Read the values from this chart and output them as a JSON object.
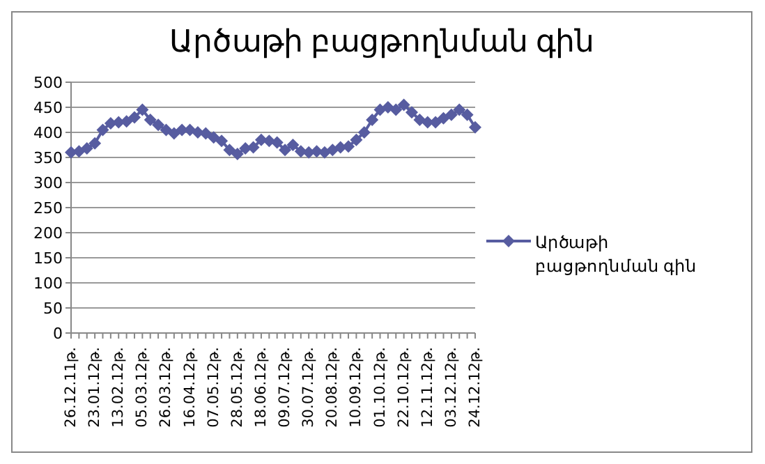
{
  "chart_data": {
    "type": "line",
    "title": "Արծաթի բացթողնման գին",
    "categories": [
      "26.12.11թ.",
      null,
      null,
      "23.01.12թ.",
      null,
      null,
      "13.02.12թ.",
      null,
      null,
      "05.03.12թ.",
      null,
      null,
      "26.03.12թ.",
      null,
      null,
      "16.04.12թ.",
      null,
      null,
      "07.05.12թ.",
      null,
      null,
      "28.05.12թ.",
      null,
      null,
      "18.06.12թ.",
      null,
      null,
      "09.07.12թ.",
      null,
      null,
      "30.07.12թ.",
      null,
      null,
      "20.08.12թ.",
      null,
      null,
      "10.09.12թ.",
      null,
      null,
      "01.10.12թ.",
      null,
      null,
      "22.10.12թ.",
      null,
      null,
      "12.11.12թ.",
      null,
      null,
      "03.12.12թ.",
      null,
      null,
      "24.12.12թ."
    ],
    "series": [
      {
        "name": "Արծաթի բացթողնման գին",
        "color": "#575ca0",
        "values": [
          360,
          362,
          368,
          378,
          405,
          418,
          420,
          422,
          430,
          445,
          425,
          415,
          405,
          398,
          405,
          405,
          400,
          398,
          390,
          383,
          365,
          357,
          368,
          370,
          385,
          383,
          380,
          365,
          375,
          362,
          360,
          362,
          360,
          365,
          370,
          372,
          385,
          400,
          425,
          445,
          450,
          445,
          455,
          440,
          425,
          420,
          420,
          428,
          435,
          445,
          435,
          410
        ]
      }
    ],
    "ylim": [
      0,
      500
    ],
    "yticks": [
      0,
      50,
      100,
      150,
      200,
      250,
      300,
      350,
      400,
      450,
      500
    ],
    "grid": "y",
    "legend": "right",
    "marker": "diamond",
    "line_style": "solid"
  }
}
